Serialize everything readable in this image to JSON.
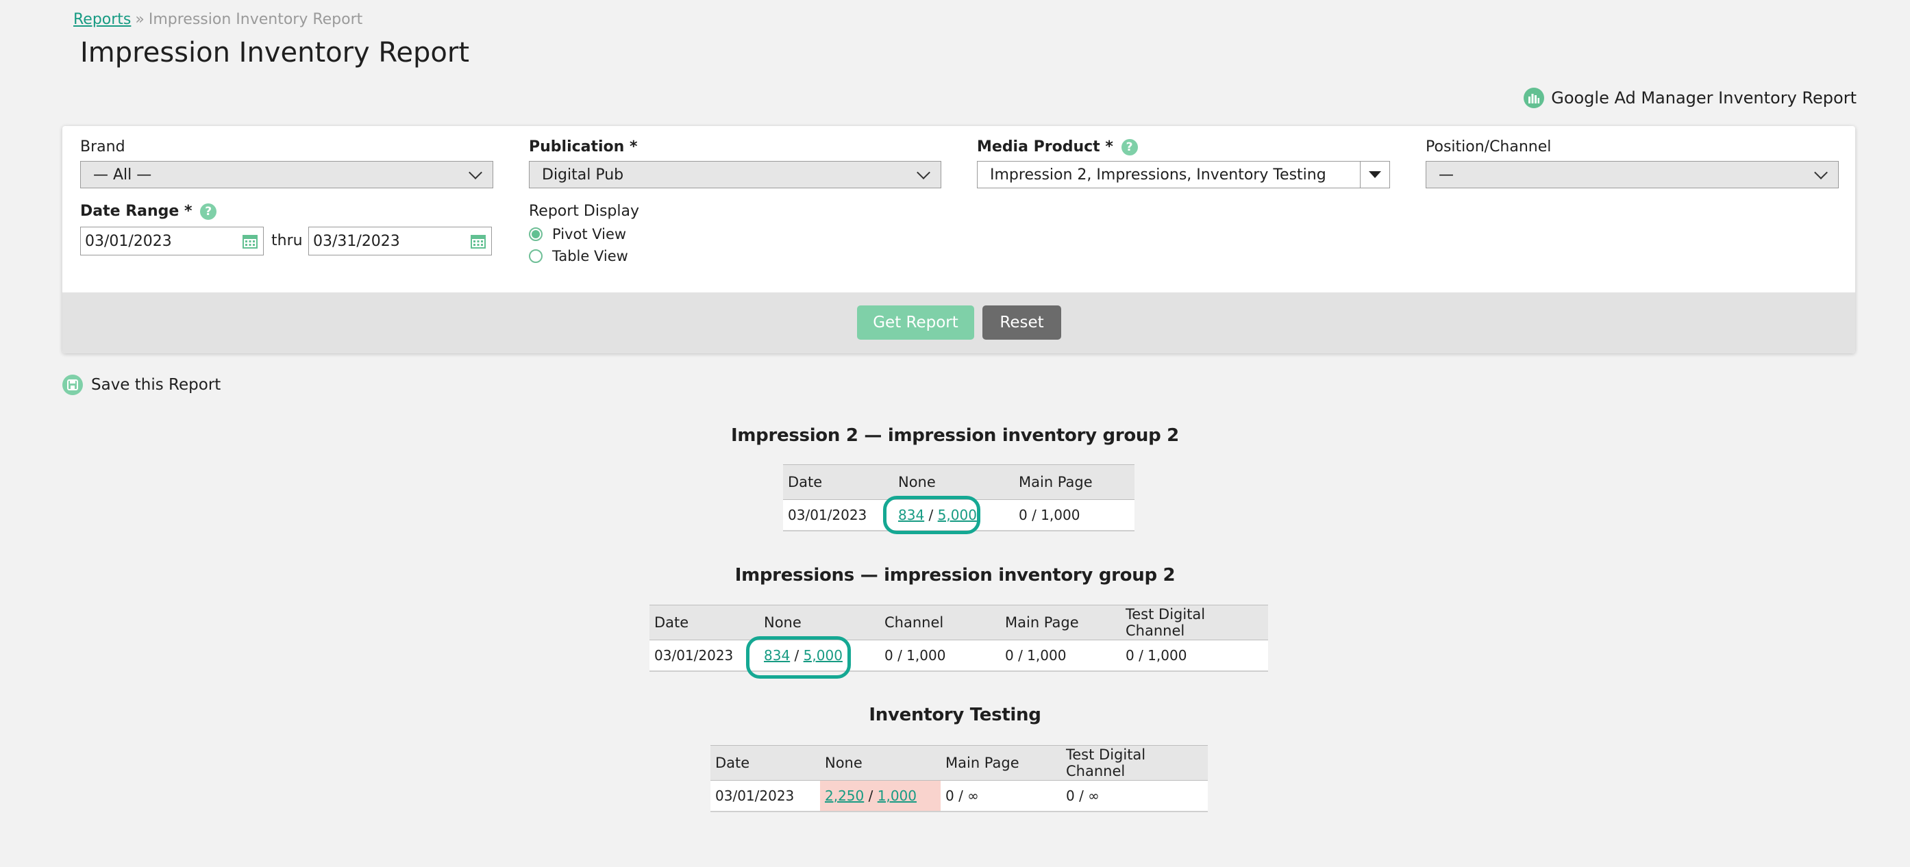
{
  "breadcrumb": {
    "parent": "Reports",
    "separator": "»",
    "current": "Impression Inventory Report"
  },
  "page_title": "Impression Inventory Report",
  "gam_link": {
    "label": "Google Ad Manager Inventory Report",
    "icon": "bar-chart-icon"
  },
  "filters": {
    "brand": {
      "label": "Brand",
      "value": "— All —"
    },
    "publication": {
      "label": "Publication *",
      "value": "Digital Pub"
    },
    "media_product": {
      "label": "Media Product *",
      "value": "Impression 2, Impressions, Inventory Testing"
    },
    "position_channel": {
      "label": "Position/Channel",
      "value": "—"
    },
    "date_range": {
      "label": "Date Range *",
      "start": "03/01/2023",
      "thru": "thru",
      "end": "03/31/2023"
    },
    "report_display": {
      "label": "Report Display",
      "options": [
        "Pivot View",
        "Table View"
      ],
      "selected": "Pivot View"
    },
    "help_glyph": "?"
  },
  "buttons": {
    "get_report": "Get Report",
    "reset": "Reset"
  },
  "save_report": {
    "label": "Save this Report",
    "icon": "save-icon"
  },
  "reports": [
    {
      "title": "Impression 2 — impression inventory group 2",
      "headers": [
        "Date",
        "None",
        "Main Page"
      ],
      "row": {
        "date": "03/01/2023",
        "none_used": "834",
        "none_total": "5,000",
        "main_page": "0 / 1,000"
      }
    },
    {
      "title": "Impressions — impression inventory group 2",
      "headers": [
        "Date",
        "None",
        "Channel",
        "Main Page",
        "Test Digital Channel"
      ],
      "row": {
        "date": "03/01/2023",
        "none_used": "834",
        "none_total": "5,000",
        "channel": "0 / 1,000",
        "main_page": "0 / 1,000",
        "test_digital_channel": "0 / 1,000"
      }
    },
    {
      "title": "Inventory Testing",
      "headers": [
        "Date",
        "None",
        "Main Page",
        "Test Digital Channel"
      ],
      "row": {
        "date": "03/01/2023",
        "none_used": "2,250",
        "none_total": "1,000",
        "main_page": "0 / ∞",
        "test_digital_channel": "0 / ∞"
      }
    }
  ],
  "slash": "/",
  "colors": {
    "accent": "#179b83",
    "button_green": "#7fd0a8",
    "over_capacity": "#f9d3cd",
    "highlight_ring": "#15a893"
  }
}
